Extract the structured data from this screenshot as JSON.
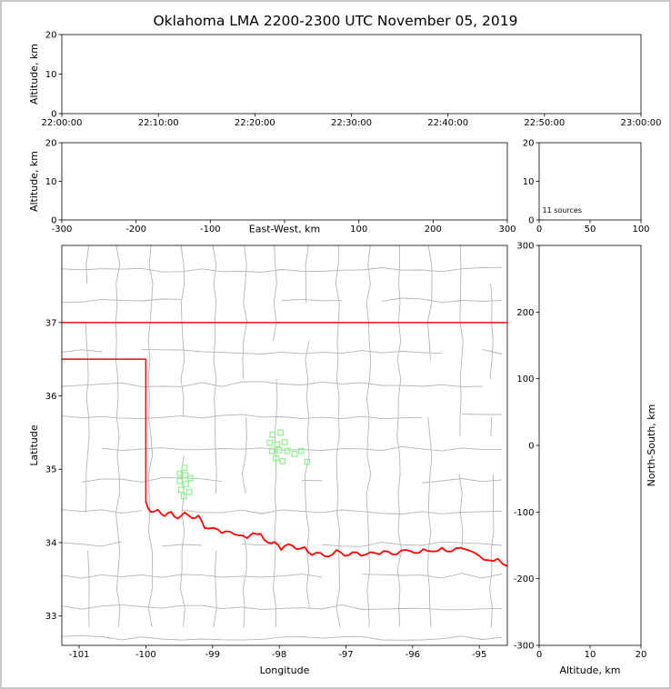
{
  "figure": {
    "title": "Oklahoma LMA 2200-2300 UTC November 05, 2019",
    "background": "#ffffff",
    "frame_color": "#c8c8c8"
  },
  "colors": {
    "axes": "#000000",
    "tick_text": "#000000",
    "county_lines": "#b4b4b4",
    "state_border": "#ff0000",
    "source_marker": "#90ee90"
  },
  "chart_data": [
    {
      "id": "time_height",
      "type": "scatter",
      "xlabel": "",
      "ylabel": "Altitude, km",
      "xlim": [
        0,
        6
      ],
      "xticks": [
        0,
        1,
        2,
        3,
        4,
        5,
        6
      ],
      "x_tick_labels": [
        "22:00:00",
        "22:10:00",
        "22:20:00",
        "22:30:00",
        "22:40:00",
        "22:50:00",
        "23:00:00"
      ],
      "ylim": [
        0,
        20
      ],
      "yticks": [
        0,
        10,
        20
      ],
      "points": []
    },
    {
      "id": "ew_height",
      "type": "scatter",
      "xlabel": "East-West, km",
      "ylabel": "Altitude, km",
      "xlim": [
        -300,
        300
      ],
      "xticks": [
        -300,
        -200,
        -100,
        0,
        100,
        200,
        300
      ],
      "ylim": [
        0,
        20
      ],
      "yticks": [
        0,
        10,
        20
      ],
      "points": []
    },
    {
      "id": "altitude_histogram",
      "type": "histogram",
      "annotation": "11 sources",
      "xlabel": "",
      "ylabel": "",
      "xlim": [
        0,
        100
      ],
      "xticks": [
        0,
        50,
        100
      ],
      "ylim": [
        0,
        20
      ],
      "yticks": [
        0,
        10,
        20
      ],
      "points": []
    },
    {
      "id": "plan_view",
      "type": "scatter",
      "xlabel": "Longitude",
      "ylabel": "Latitude",
      "xlim": [
        -101.26,
        -94.58
      ],
      "xticks": [
        -101,
        -100,
        -99,
        -98,
        -97,
        -96,
        -95
      ],
      "ylim": [
        32.6,
        38.05
      ],
      "yticks": [
        33,
        34,
        35,
        36,
        37
      ],
      "marker": "open-square",
      "points": [
        [
          -99.42,
          35.02
        ],
        [
          -99.49,
          34.94
        ],
        [
          -99.41,
          34.92
        ],
        [
          -99.33,
          34.88
        ],
        [
          -99.49,
          34.84
        ],
        [
          -99.4,
          34.8
        ],
        [
          -99.47,
          34.72
        ],
        [
          -99.35,
          34.69
        ],
        [
          -99.43,
          34.63
        ],
        [
          -98.1,
          35.47
        ],
        [
          -97.98,
          35.5
        ],
        [
          -98.14,
          35.36
        ],
        [
          -98.03,
          35.34
        ],
        [
          -97.92,
          35.37
        ],
        [
          -98.11,
          35.25
        ],
        [
          -98.0,
          35.26
        ],
        [
          -97.88,
          35.25
        ],
        [
          -98.05,
          35.15
        ],
        [
          -97.95,
          35.11
        ],
        [
          -97.77,
          35.21
        ],
        [
          -97.67,
          35.25
        ],
        [
          -97.58,
          35.1
        ]
      ],
      "state_border": [
        {
          "name": "kansas-border-line",
          "width": 1.3,
          "wiggle": false,
          "points": [
            [
              -101.3,
              37.0
            ],
            [
              -94.5,
              37.0
            ]
          ]
        },
        {
          "name": "panhandle-border-line",
          "width": 1.5,
          "wiggle": false,
          "points": [
            [
              -101.3,
              36.5
            ],
            [
              -100.0,
              36.5
            ],
            [
              -100.0,
              34.56
            ]
          ]
        },
        {
          "name": "red-river-border-line",
          "width": 1.8,
          "wiggle": true,
          "points": [
            [
              -100.0,
              34.56
            ],
            [
              -99.93,
              34.42
            ],
            [
              -99.82,
              34.45
            ],
            [
              -99.72,
              34.36
            ],
            [
              -99.62,
              34.42
            ],
            [
              -99.52,
              34.33
            ],
            [
              -99.42,
              34.41
            ],
            [
              -99.3,
              34.33
            ],
            [
              -99.21,
              34.37
            ],
            [
              -99.12,
              34.2
            ],
            [
              -98.99,
              34.2
            ],
            [
              -98.86,
              34.13
            ],
            [
              -98.74,
              34.15
            ],
            [
              -98.61,
              34.1
            ],
            [
              -98.48,
              34.06
            ],
            [
              -98.39,
              34.13
            ],
            [
              -98.28,
              34.12
            ],
            [
              -98.17,
              34.0
            ],
            [
              -98.07,
              34.01
            ],
            [
              -97.97,
              33.9
            ],
            [
              -97.86,
              33.98
            ],
            [
              -97.74,
              33.91
            ],
            [
              -97.62,
              33.94
            ],
            [
              -97.51,
              33.83
            ],
            [
              -97.38,
              33.86
            ],
            [
              -97.26,
              33.81
            ],
            [
              -97.14,
              33.9
            ],
            [
              -97.02,
              33.82
            ],
            [
              -96.9,
              33.87
            ],
            [
              -96.77,
              33.82
            ],
            [
              -96.63,
              33.87
            ],
            [
              -96.5,
              33.84
            ],
            [
              -96.37,
              33.88
            ],
            [
              -96.24,
              33.84
            ],
            [
              -96.1,
              33.9
            ],
            [
              -95.97,
              33.86
            ],
            [
              -95.84,
              33.91
            ],
            [
              -95.7,
              33.88
            ],
            [
              -95.56,
              33.93
            ],
            [
              -95.42,
              33.88
            ],
            [
              -95.28,
              33.93
            ],
            [
              -95.14,
              33.89
            ],
            [
              -95.0,
              33.82
            ],
            [
              -94.86,
              33.76
            ],
            [
              -94.72,
              33.78
            ],
            [
              -94.58,
              33.68
            ],
            [
              -94.5,
              33.66
            ]
          ]
        }
      ],
      "county_grid": {
        "lons": [
          -100.88,
          -100.42,
          -99.93,
          -99.45,
          -98.97,
          -98.52,
          -98.06,
          -97.58,
          -97.12,
          -96.66,
          -96.2,
          -95.74,
          -95.28,
          -94.82
        ],
        "lats": [
          37.72,
          37.3,
          36.6,
          36.16,
          35.72,
          35.28,
          34.85,
          34.42,
          33.98,
          33.55,
          33.12,
          32.7
        ]
      }
    },
    {
      "id": "ns_height",
      "type": "scatter",
      "xlabel": "Altitude, km",
      "ylabel": "North-South, km",
      "xlim": [
        0,
        20
      ],
      "xticks": [
        0,
        10,
        20
      ],
      "ylim": [
        -300,
        300
      ],
      "yticks": [
        -300,
        -200,
        -100,
        0,
        100,
        200,
        300
      ],
      "points": []
    }
  ]
}
